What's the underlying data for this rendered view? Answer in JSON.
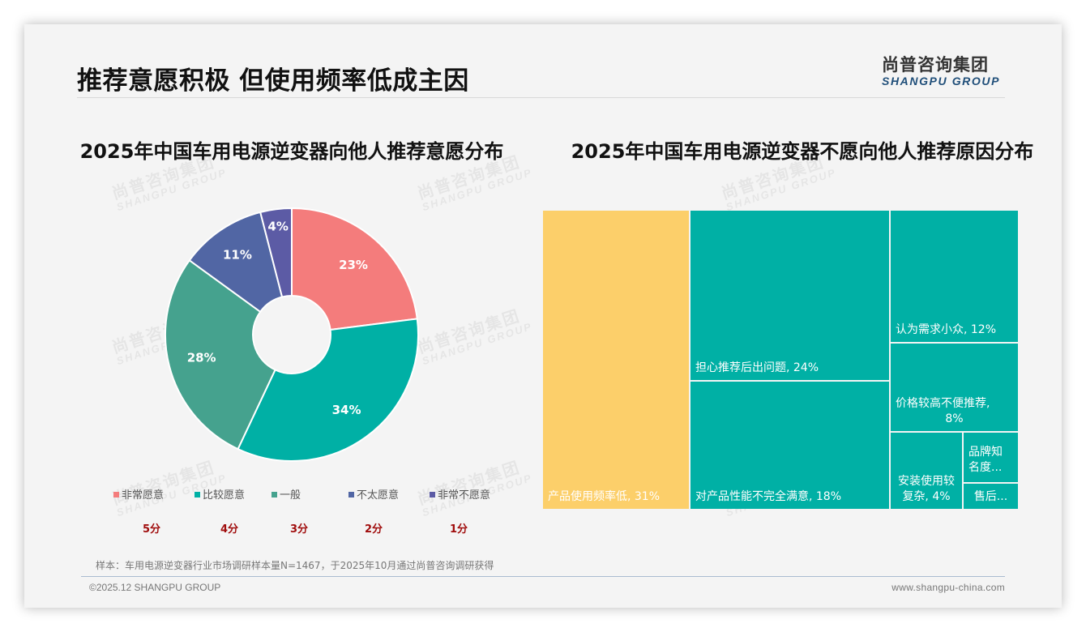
{
  "header": {
    "title": "推荐意愿积极 但使用频率低成主因",
    "logo_cn": "尚普咨询集团",
    "logo_en": "SHANGPU GROUP"
  },
  "watermark": {
    "cn": "尚普咨询集团",
    "en": "SHANGPU GROUP"
  },
  "left_chart": {
    "title": "2025年中国车用电源逆变器向他人推荐意愿分布",
    "legend": [
      {
        "label": "非常愿意",
        "color": "#F47C7C",
        "score": "5分"
      },
      {
        "label": "比较愿意",
        "color": "#00B0A5",
        "score": "4分"
      },
      {
        "label": "一般",
        "color": "#45A28E",
        "score": "3分"
      },
      {
        "label": "不太愿意",
        "color": "#5166A4",
        "score": "2分"
      },
      {
        "label": "非常不愿意",
        "color": "#5C5BA5",
        "score": "1分"
      }
    ]
  },
  "right_chart": {
    "title": "2025年中国车用电源逆变器不愿向他人推荐原因分布"
  },
  "chart_data": [
    {
      "type": "pie",
      "subtype": "donut",
      "title": "2025年中国车用电源逆变器向他人推荐意愿分布",
      "categories": [
        "非常愿意",
        "比较愿意",
        "一般",
        "不太愿意",
        "非常不愿意"
      ],
      "values": [
        23,
        34,
        28,
        11,
        4
      ],
      "labels": [
        "23%",
        "34%",
        "28%",
        "11%",
        "4%"
      ],
      "scores": [
        "5分",
        "4分",
        "3分",
        "2分",
        "1分"
      ],
      "colors": [
        "#F47C7C",
        "#00B0A5",
        "#45A28E",
        "#5166A4",
        "#5C5BA5"
      ],
      "legend_position": "bottom"
    },
    {
      "type": "treemap",
      "title": "2025年中国车用电源逆变器不愿向他人推荐原因分布",
      "categories": [
        "产品使用频率低",
        "担心推荐后出问题",
        "对产品性能不完全满意",
        "认为需求小众",
        "价格较高不便推荐",
        "安装使用较复杂",
        "品牌知名度...",
        "售后..."
      ],
      "values": [
        31,
        24,
        18,
        12,
        8,
        4,
        null,
        null
      ],
      "labels": [
        "产品使用频率低, 31%",
        "担心推荐后出问题, 24%",
        "对产品性能不完全满意, 18%",
        "认为需求小众, 12%",
        "价格较高不便推荐, 8%",
        "安装使用较复杂, 4%",
        "品牌知名度...",
        "售后..."
      ],
      "colors": {
        "highlight": "#FCCF6A",
        "default": "#00B0A5"
      }
    }
  ],
  "footer": {
    "note": "样本：车用电源逆变器行业市场调研样本量N=1467，于2025年10月通过尚普咨询调研获得",
    "copyright": "©2025.12 SHANGPU GROUP",
    "website": "www.shangpu-china.com"
  }
}
